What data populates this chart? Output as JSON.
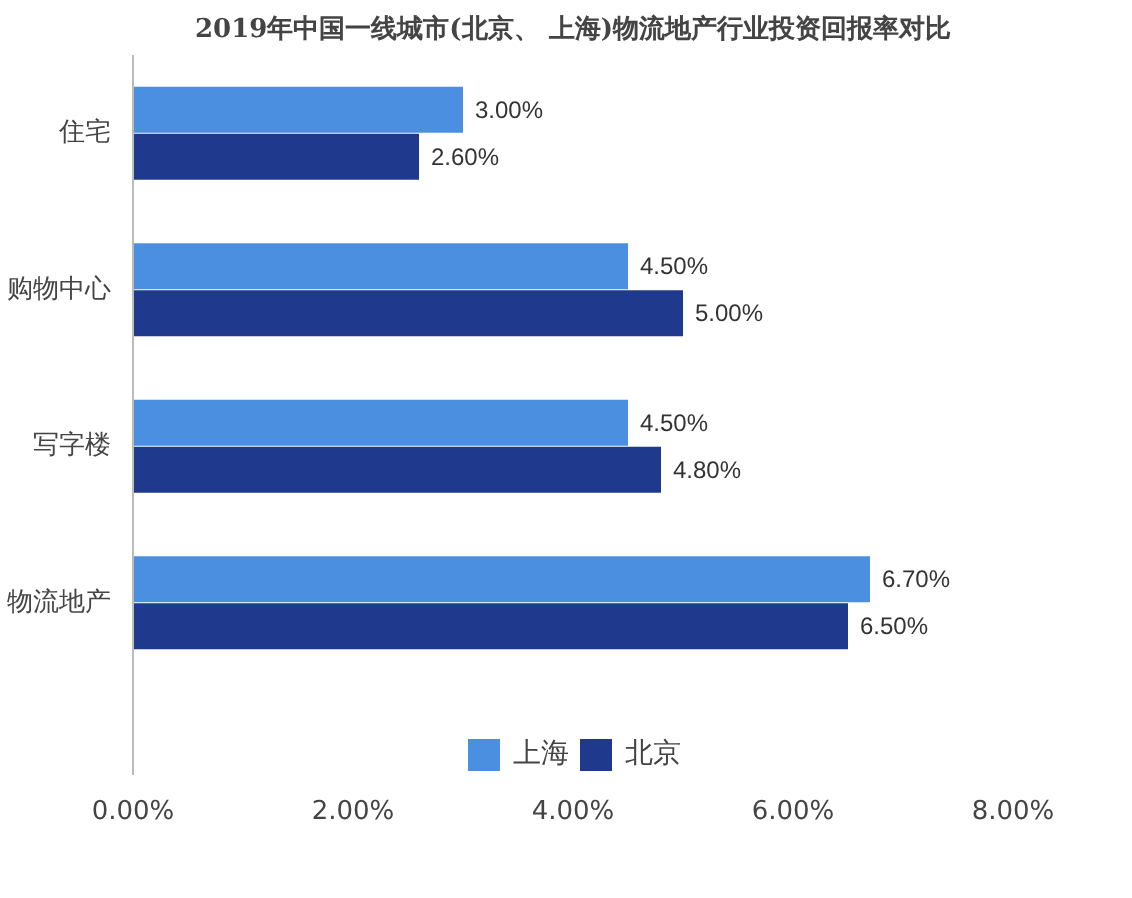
{
  "chart_data": {
    "type": "bar",
    "orientation": "horizontal",
    "title": "2019年中国一线城市(北京、 上海)物流地产行业投资回报率对比",
    "categories": [
      "住宅",
      "购物中心",
      "写字楼",
      "物流地产"
    ],
    "series": [
      {
        "name": "上海",
        "color": "#4a8fe0",
        "values": [
          3.0,
          4.5,
          4.5,
          6.7
        ],
        "value_labels": [
          "3.00%",
          "4.50%",
          "4.50%",
          "6.70%"
        ]
      },
      {
        "name": "北京",
        "color": "#1f3a8c",
        "values": [
          2.6,
          5.0,
          4.8,
          6.5
        ],
        "value_labels": [
          "2.60%",
          "5.00%",
          "4.80%",
          "6.50%"
        ]
      }
    ],
    "xlim": [
      0,
      8
    ],
    "xticks": [
      {
        "value": 0,
        "label": "0.00%"
      },
      {
        "value": 2,
        "label": "2.00%"
      },
      {
        "value": 4,
        "label": "4.00%"
      },
      {
        "value": 6,
        "label": "6.00%"
      },
      {
        "value": 8,
        "label": "8.00%"
      }
    ],
    "legend": "bottom"
  }
}
